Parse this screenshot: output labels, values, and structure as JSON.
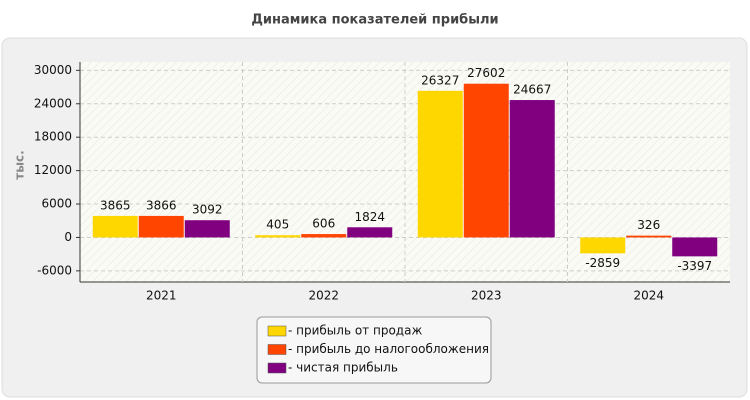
{
  "chart_data": {
    "type": "bar",
    "title": "Динамика показателей прибыли",
    "y_label": "тыс.",
    "categories": [
      "2021",
      "2022",
      "2023",
      "2024"
    ],
    "series": [
      {
        "name": "- прибыль от продаж",
        "color": "#ffd700",
        "values": [
          3865,
          405,
          26327,
          -2859
        ]
      },
      {
        "name": "- прибыль до налогообложения",
        "color": "#ff4500",
        "values": [
          3866,
          606,
          27602,
          326
        ]
      },
      {
        "name": "- чистая прибыль",
        "color": "#800080",
        "values": [
          3092,
          1824,
          24667,
          -3397
        ]
      }
    ],
    "ylim": [
      -8000,
      31500
    ],
    "yticks": [
      -6000,
      0,
      6000,
      12000,
      18000,
      24000,
      30000
    ],
    "grid": true,
    "legend": "bottom"
  }
}
